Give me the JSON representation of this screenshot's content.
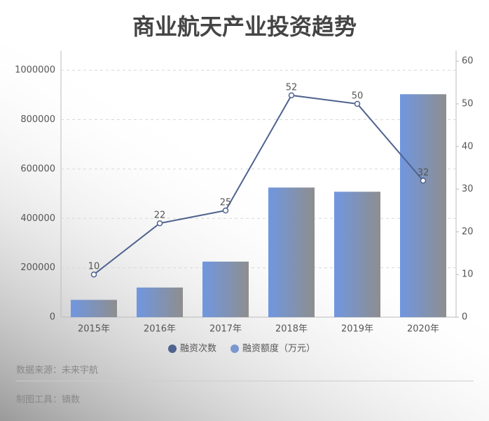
{
  "chart_data": {
    "type": "bar-line",
    "title": "商业航天产业投资趋势",
    "categories": [
      "2015年",
      "2016年",
      "2017年",
      "2018年",
      "2019年",
      "2020年"
    ],
    "series": [
      {
        "name": "融资次数",
        "type": "line",
        "axis": "y2",
        "color": "#4f6390",
        "values": [
          10,
          22,
          25,
          52,
          50,
          32
        ]
      },
      {
        "name": "融资额度（万元）",
        "type": "bar",
        "axis": "y",
        "color": "#7097e0",
        "values": [
          70000,
          120000,
          225000,
          525000,
          508000,
          903000
        ]
      }
    ],
    "ylim": [
      0,
      1080000
    ],
    "yticks": [
      0,
      200000,
      400000,
      600000,
      800000,
      1000000
    ],
    "y2lim": [
      0,
      62.5
    ],
    "y2ticks": [
      0,
      10,
      20,
      30,
      40,
      50,
      60
    ],
    "grid": true,
    "legend": "bottom",
    "source": "数据来源：未来宇航",
    "tool": "制图工具：镝数"
  }
}
